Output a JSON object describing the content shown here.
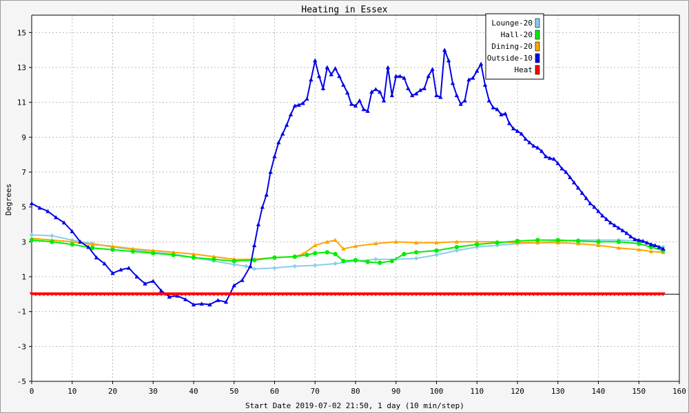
{
  "chart_data": {
    "type": "line",
    "title": "Heating in Essex",
    "xlabel": "Start Date 2019-07-02 21:50, 1 day (10 min/step)",
    "ylabel": "Degrees",
    "xlim": [
      0,
      160
    ],
    "ylim": [
      -5,
      16
    ],
    "x_ticks": [
      0,
      10,
      20,
      30,
      40,
      50,
      60,
      70,
      80,
      90,
      100,
      110,
      120,
      130,
      140,
      150,
      160
    ],
    "y_ticks": [
      -5,
      -3,
      -1,
      1,
      3,
      5,
      7,
      9,
      11,
      13,
      15
    ],
    "grid": true,
    "legend_position": "top-right",
    "series": [
      {
        "name": "Lounge-20",
        "color": "#87ceeb",
        "marker": "diamond",
        "points": [
          [
            0,
            3.4
          ],
          [
            5,
            3.35
          ],
          [
            10,
            3.1
          ],
          [
            15,
            2.9
          ],
          [
            20,
            2.7
          ],
          [
            25,
            2.55
          ],
          [
            30,
            2.4
          ],
          [
            35,
            2.3
          ],
          [
            40,
            2.1
          ],
          [
            45,
            1.9
          ],
          [
            50,
            1.7
          ],
          [
            53,
            1.6
          ],
          [
            55,
            1.45
          ],
          [
            60,
            1.5
          ],
          [
            65,
            1.6
          ],
          [
            70,
            1.65
          ],
          [
            75,
            1.75
          ],
          [
            80,
            1.9
          ],
          [
            85,
            2.0
          ],
          [
            90,
            2.0
          ],
          [
            95,
            2.05
          ],
          [
            100,
            2.25
          ],
          [
            105,
            2.5
          ],
          [
            110,
            2.7
          ],
          [
            115,
            2.8
          ],
          [
            120,
            2.9
          ],
          [
            125,
            2.95
          ],
          [
            130,
            3.05
          ],
          [
            135,
            3.1
          ],
          [
            140,
            3.1
          ],
          [
            145,
            3.1
          ],
          [
            150,
            3.05
          ],
          [
            153,
            2.85
          ],
          [
            156,
            2.7
          ]
        ]
      },
      {
        "name": "Hall-20",
        "color": "#00ee00",
        "marker": "circle",
        "points": [
          [
            0,
            3.1
          ],
          [
            5,
            3.0
          ],
          [
            10,
            2.85
          ],
          [
            15,
            2.65
          ],
          [
            20,
            2.55
          ],
          [
            25,
            2.45
          ],
          [
            30,
            2.35
          ],
          [
            35,
            2.25
          ],
          [
            40,
            2.1
          ],
          [
            45,
            2.0
          ],
          [
            50,
            1.9
          ],
          [
            55,
            1.95
          ],
          [
            60,
            2.1
          ],
          [
            65,
            2.15
          ],
          [
            68,
            2.25
          ],
          [
            70,
            2.35
          ],
          [
            73,
            2.4
          ],
          [
            75,
            2.3
          ],
          [
            77,
            1.9
          ],
          [
            80,
            1.95
          ],
          [
            83,
            1.85
          ],
          [
            86,
            1.8
          ],
          [
            89,
            1.9
          ],
          [
            92,
            2.3
          ],
          [
            95,
            2.4
          ],
          [
            100,
            2.5
          ],
          [
            105,
            2.7
          ],
          [
            110,
            2.85
          ],
          [
            115,
            2.95
          ],
          [
            120,
            3.05
          ],
          [
            125,
            3.1
          ],
          [
            130,
            3.1
          ],
          [
            135,
            3.05
          ],
          [
            140,
            3.0
          ],
          [
            145,
            3.0
          ],
          [
            150,
            2.9
          ],
          [
            153,
            2.7
          ],
          [
            156,
            2.5
          ]
        ]
      },
      {
        "name": "Dining-20",
        "color": "#ffa500",
        "marker": "triangle-up",
        "points": [
          [
            0,
            3.2
          ],
          [
            5,
            3.1
          ],
          [
            10,
            3.0
          ],
          [
            15,
            2.85
          ],
          [
            20,
            2.75
          ],
          [
            25,
            2.6
          ],
          [
            30,
            2.5
          ],
          [
            35,
            2.4
          ],
          [
            40,
            2.3
          ],
          [
            45,
            2.15
          ],
          [
            50,
            2.0
          ],
          [
            55,
            2.0
          ],
          [
            60,
            2.1
          ],
          [
            65,
            2.15
          ],
          [
            67,
            2.3
          ],
          [
            70,
            2.8
          ],
          [
            73,
            3.0
          ],
          [
            75,
            3.1
          ],
          [
            77,
            2.6
          ],
          [
            80,
            2.75
          ],
          [
            85,
            2.9
          ],
          [
            90,
            3.0
          ],
          [
            95,
            2.95
          ],
          [
            100,
            2.95
          ],
          [
            105,
            3.0
          ],
          [
            110,
            3.0
          ],
          [
            115,
            3.0
          ],
          [
            120,
            2.95
          ],
          [
            125,
            2.95
          ],
          [
            130,
            2.95
          ],
          [
            135,
            2.9
          ],
          [
            140,
            2.8
          ],
          [
            145,
            2.65
          ],
          [
            150,
            2.55
          ],
          [
            153,
            2.45
          ],
          [
            156,
            2.4
          ]
        ]
      },
      {
        "name": "Outside-10",
        "color": "#0000e6",
        "marker": "triangle-up",
        "points": [
          [
            0,
            5.2
          ],
          [
            2,
            4.95
          ],
          [
            4,
            4.75
          ],
          [
            6,
            4.4
          ],
          [
            8,
            4.1
          ],
          [
            10,
            3.6
          ],
          [
            12,
            3.0
          ],
          [
            14,
            2.7
          ],
          [
            16,
            2.1
          ],
          [
            18,
            1.75
          ],
          [
            20,
            1.2
          ],
          [
            22,
            1.4
          ],
          [
            24,
            1.5
          ],
          [
            26,
            1.0
          ],
          [
            28,
            0.6
          ],
          [
            30,
            0.75
          ],
          [
            32,
            0.2
          ],
          [
            34,
            -0.15
          ],
          [
            36,
            -0.1
          ],
          [
            38,
            -0.3
          ],
          [
            40,
            -0.6
          ],
          [
            42,
            -0.55
          ],
          [
            44,
            -0.6
          ],
          [
            46,
            -0.35
          ],
          [
            48,
            -0.45
          ],
          [
            50,
            0.5
          ],
          [
            52,
            0.8
          ],
          [
            54,
            1.6
          ],
          [
            55,
            2.8
          ],
          [
            56,
            4.0
          ],
          [
            57,
            5.0
          ],
          [
            58,
            5.7
          ],
          [
            59,
            7.0
          ],
          [
            60,
            7.9
          ],
          [
            61,
            8.7
          ],
          [
            62,
            9.2
          ],
          [
            63,
            9.7
          ],
          [
            64,
            10.3
          ],
          [
            65,
            10.8
          ],
          [
            66,
            10.85
          ],
          [
            67,
            10.95
          ],
          [
            68,
            11.2
          ],
          [
            69,
            12.3
          ],
          [
            70,
            13.4
          ],
          [
            71,
            12.5
          ],
          [
            72,
            11.8
          ],
          [
            73,
            13.0
          ],
          [
            74,
            12.6
          ],
          [
            75,
            12.95
          ],
          [
            76,
            12.5
          ],
          [
            77,
            12.0
          ],
          [
            78,
            11.55
          ],
          [
            79,
            10.9
          ],
          [
            80,
            10.8
          ],
          [
            81,
            11.1
          ],
          [
            82,
            10.6
          ],
          [
            83,
            10.5
          ],
          [
            84,
            11.6
          ],
          [
            85,
            11.75
          ],
          [
            86,
            11.6
          ],
          [
            87,
            11.1
          ],
          [
            88,
            13.0
          ],
          [
            89,
            11.4
          ],
          [
            90,
            12.5
          ],
          [
            91,
            12.5
          ],
          [
            92,
            12.4
          ],
          [
            93,
            11.8
          ],
          [
            94,
            11.4
          ],
          [
            95,
            11.5
          ],
          [
            96,
            11.7
          ],
          [
            97,
            11.8
          ],
          [
            98,
            12.5
          ],
          [
            99,
            12.9
          ],
          [
            100,
            11.4
          ],
          [
            101,
            11.3
          ],
          [
            102,
            14.0
          ],
          [
            103,
            13.4
          ],
          [
            104,
            12.1
          ],
          [
            105,
            11.4
          ],
          [
            106,
            10.9
          ],
          [
            107,
            11.1
          ],
          [
            108,
            12.3
          ],
          [
            109,
            12.4
          ],
          [
            110,
            12.8
          ],
          [
            111,
            13.2
          ],
          [
            112,
            12.0
          ],
          [
            113,
            11.1
          ],
          [
            114,
            10.7
          ],
          [
            115,
            10.6
          ],
          [
            116,
            10.3
          ],
          [
            117,
            10.35
          ],
          [
            118,
            9.8
          ],
          [
            119,
            9.5
          ],
          [
            120,
            9.35
          ],
          [
            121,
            9.2
          ],
          [
            122,
            8.9
          ],
          [
            123,
            8.7
          ],
          [
            124,
            8.5
          ],
          [
            125,
            8.4
          ],
          [
            126,
            8.2
          ],
          [
            127,
            7.9
          ],
          [
            128,
            7.8
          ],
          [
            129,
            7.75
          ],
          [
            130,
            7.5
          ],
          [
            131,
            7.2
          ],
          [
            132,
            7.0
          ],
          [
            133,
            6.7
          ],
          [
            134,
            6.4
          ],
          [
            135,
            6.1
          ],
          [
            136,
            5.8
          ],
          [
            137,
            5.5
          ],
          [
            138,
            5.2
          ],
          [
            139,
            5.0
          ],
          [
            140,
            4.75
          ],
          [
            141,
            4.5
          ],
          [
            142,
            4.3
          ],
          [
            143,
            4.1
          ],
          [
            144,
            3.95
          ],
          [
            145,
            3.8
          ],
          [
            146,
            3.65
          ],
          [
            147,
            3.5
          ],
          [
            148,
            3.3
          ],
          [
            149,
            3.15
          ],
          [
            150,
            3.1
          ],
          [
            151,
            3.05
          ],
          [
            152,
            2.95
          ],
          [
            153,
            2.85
          ],
          [
            154,
            2.8
          ],
          [
            155,
            2.7
          ],
          [
            156,
            2.6
          ]
        ]
      },
      {
        "name": "Heat",
        "color": "#ff0000",
        "marker": "triangle-down",
        "points": [
          [
            0,
            0
          ],
          [
            156,
            0
          ]
        ]
      }
    ]
  }
}
